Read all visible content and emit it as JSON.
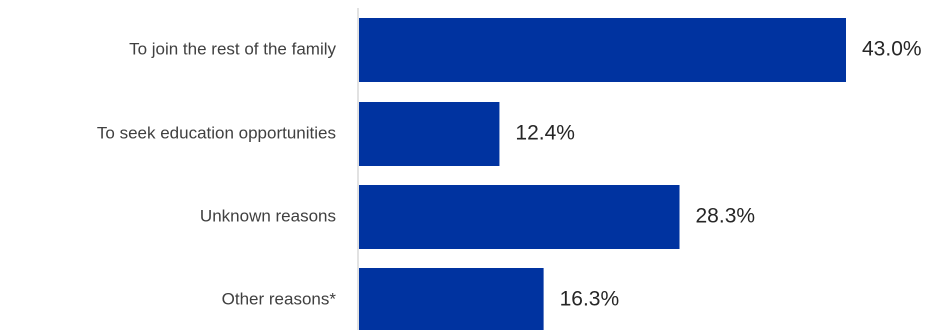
{
  "chart_data": {
    "type": "bar",
    "orientation": "horizontal",
    "categories": [
      "To join the rest of the family",
      "To seek education opportunities",
      "Unknown reasons",
      "Other reasons*"
    ],
    "values": [
      43.0,
      12.4,
      28.3,
      16.3
    ],
    "value_labels": [
      "43.0%",
      "12.4%",
      "28.3%",
      "16.3%"
    ],
    "unit": "%",
    "xlim": [
      0,
      45
    ],
    "grid": false,
    "legend": "none",
    "colors": {
      "bar": "#0033A0",
      "axis": "#D9D9D9",
      "category_text": "#404040",
      "value_text": "#262626"
    }
  }
}
